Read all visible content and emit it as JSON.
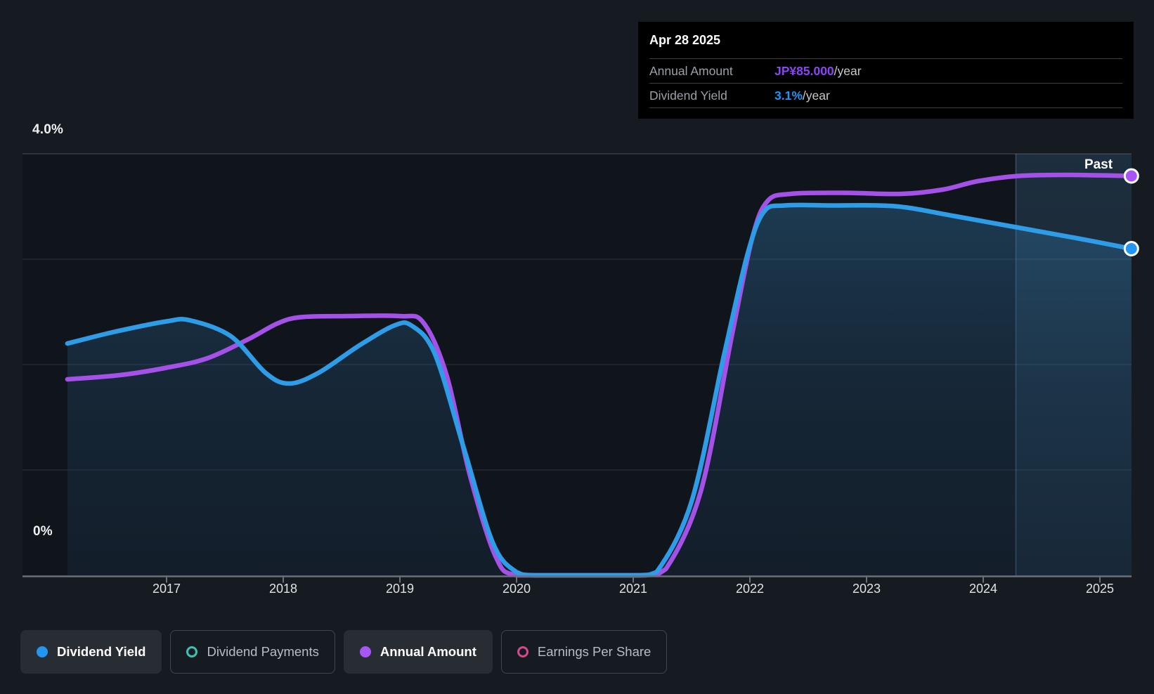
{
  "tooltip": {
    "date": "Apr 28 2025",
    "rows": [
      {
        "label": "Annual Amount",
        "value": "JP¥85.000",
        "suffix": "/year",
        "color": "#8b45f6"
      },
      {
        "label": "Dividend Yield",
        "value": "3.1%",
        "suffix": "/year",
        "color": "#2196f3"
      }
    ]
  },
  "axis": {
    "y_top_label": "4.0%",
    "y_zero_label": "0%"
  },
  "past_label": "Past",
  "legend": {
    "items": [
      {
        "label": "Dividend Yield",
        "color": "#2196f3",
        "variant": "filled",
        "active": true
      },
      {
        "label": "Dividend Payments",
        "color": "#3dc2b1",
        "variant": "ring",
        "active": false
      },
      {
        "label": "Annual Amount",
        "color": "#a855f7",
        "variant": "filled",
        "active": true
      },
      {
        "label": "Earnings Per Share",
        "color": "#d6478f",
        "variant": "ring",
        "active": false
      }
    ]
  },
  "chart_data": {
    "type": "line",
    "x_ticks": [
      "2017",
      "2018",
      "2019",
      "2020",
      "2021",
      "2022",
      "2023",
      "2024",
      "2025"
    ],
    "x_tick_years": [
      2017,
      2018,
      2019,
      2020,
      2021,
      2022,
      2023,
      2024,
      2025
    ],
    "x_range_years": [
      2016.15,
      2025.27
    ],
    "y_axis": {
      "unit": "%",
      "range": [
        0,
        4
      ],
      "gridline_step": 1,
      "top_label": "4.0%",
      "bottom_label": "0%"
    },
    "past_region_start_year": 2024.28,
    "legend_position": "bottom",
    "grid": true,
    "series": [
      {
        "name": "Dividend Yield",
        "color": "#2e9ce6",
        "dot_color": "#2196f3",
        "current_value": "3.1%/year",
        "area_fill": true,
        "points": [
          [
            2016.15,
            2.2
          ],
          [
            2016.55,
            2.31
          ],
          [
            2017.0,
            2.41
          ],
          [
            2017.2,
            2.42
          ],
          [
            2017.55,
            2.27
          ],
          [
            2017.85,
            1.92
          ],
          [
            2018.05,
            1.82
          ],
          [
            2018.3,
            1.92
          ],
          [
            2018.65,
            2.18
          ],
          [
            2018.95,
            2.37
          ],
          [
            2019.1,
            2.37
          ],
          [
            2019.3,
            2.1
          ],
          [
            2019.55,
            1.2
          ],
          [
            2019.8,
            0.3
          ],
          [
            2020.0,
            0.03
          ],
          [
            2020.15,
            0.0
          ],
          [
            2020.6,
            0.0
          ],
          [
            2021.05,
            0.0
          ],
          [
            2021.2,
            0.03
          ],
          [
            2021.5,
            0.7
          ],
          [
            2021.78,
            2.1
          ],
          [
            2021.98,
            3.05
          ],
          [
            2022.12,
            3.45
          ],
          [
            2022.3,
            3.51
          ],
          [
            2022.7,
            3.51
          ],
          [
            2023.1,
            3.51
          ],
          [
            2023.35,
            3.49
          ],
          [
            2023.75,
            3.41
          ],
          [
            2024.3,
            3.3
          ],
          [
            2024.8,
            3.2
          ],
          [
            2025.27,
            3.1
          ]
        ]
      },
      {
        "name": "Annual Amount",
        "color": "#a451e8",
        "dot_color": "#a855f7",
        "current_value": "JP¥85.000/year",
        "area_fill": false,
        "points": [
          [
            2016.15,
            1.86
          ],
          [
            2016.6,
            1.9
          ],
          [
            2017.0,
            1.97
          ],
          [
            2017.35,
            2.06
          ],
          [
            2017.7,
            2.24
          ],
          [
            2017.95,
            2.39
          ],
          [
            2018.15,
            2.45
          ],
          [
            2018.55,
            2.46
          ],
          [
            2019.0,
            2.46
          ],
          [
            2019.2,
            2.4
          ],
          [
            2019.4,
            1.9
          ],
          [
            2019.6,
            0.95
          ],
          [
            2019.82,
            0.18
          ],
          [
            2020.0,
            0.0
          ],
          [
            2020.5,
            0.0
          ],
          [
            2021.1,
            0.0
          ],
          [
            2021.28,
            0.06
          ],
          [
            2021.58,
            0.8
          ],
          [
            2021.85,
            2.3
          ],
          [
            2022.02,
            3.2
          ],
          [
            2022.15,
            3.55
          ],
          [
            2022.35,
            3.62
          ],
          [
            2022.8,
            3.63
          ],
          [
            2023.3,
            3.62
          ],
          [
            2023.65,
            3.66
          ],
          [
            2023.95,
            3.74
          ],
          [
            2024.3,
            3.79
          ],
          [
            2024.7,
            3.8
          ],
          [
            2025.27,
            3.79
          ]
        ]
      }
    ]
  }
}
